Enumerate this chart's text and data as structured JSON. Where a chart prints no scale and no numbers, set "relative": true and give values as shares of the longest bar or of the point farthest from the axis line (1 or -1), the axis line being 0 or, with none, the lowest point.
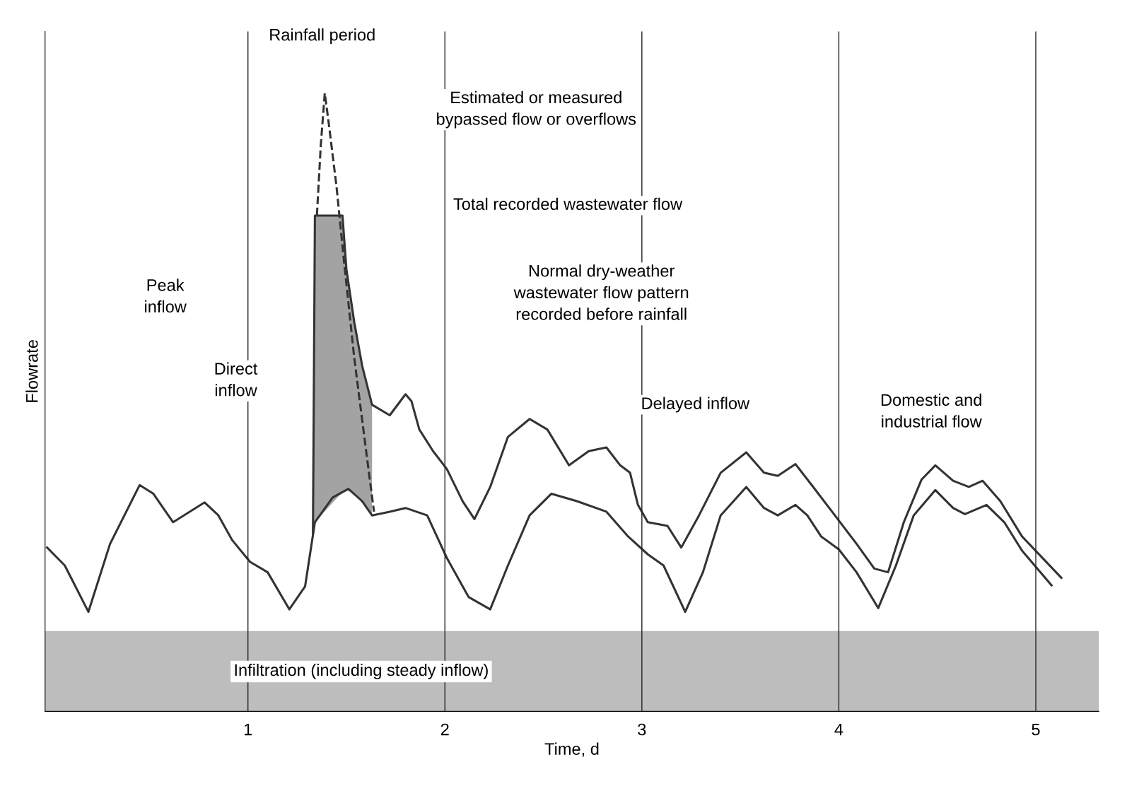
{
  "chart_data": {
    "type": "line",
    "relative": true,
    "xlabel": "Time, d",
    "ylabel": "Flowrate",
    "xlim": [
      -0.03,
      5.32
    ],
    "xticks": [
      1,
      2,
      3,
      4,
      5
    ],
    "grid": "x",
    "tick_labels": "x",
    "series": [
      {
        "color": "#333333",
        "x": [
          -0.02,
          0.07,
          0.19,
          0.3,
          0.45,
          0.52,
          0.62,
          0.78,
          0.85,
          0.92,
          1.01,
          1.1,
          1.21,
          1.29,
          1.34,
          1.43,
          1.51,
          1.58,
          1.63,
          1.72,
          1.8,
          1.91,
          2.01,
          2.12,
          2.23,
          2.32,
          2.43,
          2.54,
          2.67,
          2.82,
          2.93,
          3.03,
          3.11,
          3.22,
          3.31,
          3.4,
          3.53,
          3.62,
          3.69,
          3.78,
          3.84,
          3.91,
          4.0,
          4.09,
          4.2,
          4.29,
          4.38,
          4.49,
          4.58,
          4.64,
          4.75,
          4.84,
          4.93,
          5.08
        ],
        "values": [
          0.265,
          0.236,
          0.161,
          0.271,
          0.366,
          0.352,
          0.306,
          0.338,
          0.317,
          0.277,
          0.242,
          0.225,
          0.165,
          0.202,
          0.306,
          0.346,
          0.36,
          0.34,
          0.317,
          0.323,
          0.329,
          0.317,
          0.248,
          0.185,
          0.165,
          0.236,
          0.317,
          0.352,
          0.34,
          0.323,
          0.283,
          0.254,
          0.236,
          0.161,
          0.225,
          0.317,
          0.363,
          0.329,
          0.317,
          0.334,
          0.317,
          0.283,
          0.262,
          0.225,
          0.167,
          0.236,
          0.317,
          0.358,
          0.329,
          0.319,
          0.334,
          0.306,
          0.26,
          0.204
        ]
      },
      {
        "color": "#333333",
        "x": [
          1.33,
          1.34,
          1.48,
          1.5,
          1.54,
          1.58,
          1.63,
          1.72,
          1.8,
          1.83,
          1.87,
          1.94,
          2.01,
          2.09,
          2.15,
          2.23,
          2.32,
          2.43,
          2.52,
          2.63,
          2.73,
          2.82,
          2.89,
          2.94,
          2.98,
          3.03,
          3.13,
          3.2,
          3.29,
          3.4,
          3.53,
          3.62,
          3.69,
          3.78,
          3.87,
          3.98,
          4.09,
          4.18,
          4.25,
          4.33,
          4.42,
          4.49,
          4.58,
          4.66,
          4.73,
          4.82,
          4.93,
          5.13
        ],
        "values": [
          0.288,
          0.802,
          0.802,
          0.715,
          0.629,
          0.559,
          0.496,
          0.479,
          0.513,
          0.502,
          0.456,
          0.421,
          0.392,
          0.34,
          0.311,
          0.363,
          0.444,
          0.473,
          0.456,
          0.398,
          0.421,
          0.427,
          0.398,
          0.386,
          0.334,
          0.306,
          0.3,
          0.265,
          0.317,
          0.386,
          0.419,
          0.386,
          0.381,
          0.4,
          0.363,
          0.317,
          0.271,
          0.231,
          0.225,
          0.306,
          0.375,
          0.398,
          0.373,
          0.363,
          0.373,
          0.34,
          0.283,
          0.216
        ],
        "lower": [
          0.288,
          0.306,
          0.355,
          0.358,
          0.352,
          0.34,
          0.317,
          null,
          null,
          null,
          null,
          null,
          null,
          null,
          null,
          null,
          null,
          null,
          null,
          null,
          null,
          null,
          null,
          null,
          null,
          null,
          null,
          null,
          null,
          null,
          null,
          null,
          null,
          null,
          null,
          null,
          null,
          null,
          null,
          null,
          null,
          null,
          null,
          null,
          null,
          null,
          null,
          null
        ],
        "upper": [
          0.288,
          0.802,
          0.802,
          0.715,
          0.629,
          0.559,
          0.496,
          null,
          null,
          null,
          null,
          null,
          null,
          null,
          null,
          null,
          null,
          null,
          null,
          null,
          null,
          null,
          null,
          null,
          null,
          null,
          null,
          null,
          null,
          null,
          null,
          null,
          null,
          null,
          null,
          null,
          null,
          null,
          null,
          null,
          null,
          null,
          null,
          null,
          null,
          null,
          null,
          null
        ]
      },
      {
        "color": "#333333",
        "line_style": "dashed",
        "x": [
          1.35,
          1.37,
          1.39,
          1.41,
          1.45,
          1.49,
          1.54,
          1.6,
          1.64
        ],
        "values": [
          0.802,
          0.917,
          1.0,
          0.952,
          0.848,
          0.721,
          0.571,
          0.421,
          0.323
        ]
      }
    ],
    "bands": [
      {
        "axis": "y",
        "from": 0,
        "to": 0.129,
        "label": "Infiltration (including steady inflow)",
        "color": "#bdbdbd"
      }
    ],
    "annotations": [
      "Rainfall period",
      "Estimated or measured\nbypassed flow or overflows",
      "Total recorded wastewater flow",
      "Normal dry-weather\nwastewater flow pattern\nrecorded before rainfall",
      "Peak\ninflow",
      "Direct\ninflow",
      "Delayed inflow",
      "Domestic and\nindustrial flow"
    ]
  }
}
